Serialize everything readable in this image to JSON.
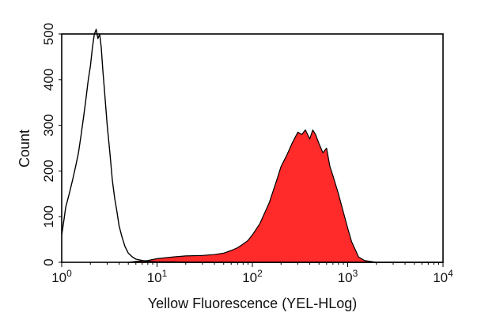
{
  "chart_data": {
    "type": "area",
    "title": "",
    "xlabel": "Yellow Fluorescence (YEL-HLog)",
    "ylabel": "Count",
    "x_scale": "log",
    "xlim": [
      1,
      10000
    ],
    "ylim": [
      0,
      500
    ],
    "x_ticks": [
      {
        "value": 1,
        "base": "10",
        "exp": "0"
      },
      {
        "value": 10,
        "base": "10",
        "exp": "1"
      },
      {
        "value": 100,
        "base": "10",
        "exp": "2"
      },
      {
        "value": 1000,
        "base": "10",
        "exp": "3"
      },
      {
        "value": 10000,
        "base": "10",
        "exp": "4"
      }
    ],
    "y_ticks": [
      {
        "value": 0,
        "label": "0"
      },
      {
        "value": 100,
        "label": "100"
      },
      {
        "value": 200,
        "label": "200"
      },
      {
        "value": 300,
        "label": "300"
      },
      {
        "value": 400,
        "label": "400"
      },
      {
        "value": 500,
        "label": "500"
      }
    ],
    "grid": false,
    "series": [
      {
        "style": "outline",
        "color": "#000000",
        "x": [
          1.0,
          1.05,
          1.1,
          1.2,
          1.3,
          1.4,
          1.5,
          1.6,
          1.7,
          1.8,
          1.9,
          2.0,
          2.1,
          2.2,
          2.3,
          2.4,
          2.5,
          2.6,
          2.7,
          2.8,
          2.9,
          3.0,
          3.2,
          3.4,
          3.6,
          3.8,
          4.0,
          4.3,
          4.6,
          5.0,
          5.5,
          6.0,
          7.0,
          8.0,
          10,
          15,
          20,
          30,
          50,
          100,
          1000,
          10000
        ],
        "y": [
          60,
          90,
          120,
          150,
          180,
          210,
          240,
          280,
          320,
          360,
          400,
          430,
          470,
          500,
          510,
          490,
          500,
          470,
          420,
          380,
          340,
          300,
          240,
          180,
          140,
          110,
          80,
          55,
          35,
          20,
          12,
          7,
          4,
          2,
          1,
          1,
          0,
          0,
          0,
          0,
          0,
          0
        ]
      },
      {
        "style": "filled",
        "color": "#ff2a2a",
        "x": [
          5,
          6,
          8,
          10,
          15,
          20,
          30,
          40,
          50,
          60,
          70,
          80,
          90,
          100,
          120,
          150,
          180,
          200,
          230,
          260,
          300,
          330,
          360,
          400,
          430,
          460,
          500,
          550,
          600,
          650,
          700,
          800,
          900,
          1000,
          1100,
          1200,
          1300,
          1500,
          2000
        ],
        "y": [
          0,
          2,
          4,
          8,
          12,
          14,
          15,
          17,
          20,
          26,
          32,
          40,
          48,
          60,
          85,
          130,
          180,
          210,
          235,
          260,
          285,
          280,
          290,
          270,
          290,
          280,
          260,
          240,
          250,
          210,
          190,
          150,
          110,
          75,
          45,
          28,
          12,
          4,
          0
        ]
      }
    ]
  }
}
